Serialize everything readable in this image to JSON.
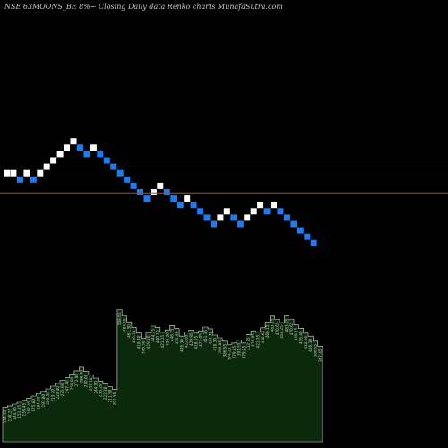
{
  "header": {
    "title": "NSE 63MOONS_BE 8%~  Closing Daily data  Renko  charts MunafaSutra.com"
  },
  "colors": {
    "background": "#000000",
    "up_brick": "#ffffff",
    "down_brick": "#1e7bf0",
    "resistance_line": "#a0522d",
    "volume_fill": "#0b2a0b",
    "volume_stroke": "#dcdcdc",
    "volume_label": "#c8c8c8"
  },
  "chart_data": [
    {
      "type": "renko",
      "bricks": [
        {
          "dir": "up"
        },
        {
          "dir": "up"
        },
        {
          "dir": "down"
        },
        {
          "dir": "up"
        },
        {
          "dir": "down"
        },
        {
          "dir": "up"
        },
        {
          "dir": "up"
        },
        {
          "dir": "up"
        },
        {
          "dir": "up"
        },
        {
          "dir": "up"
        },
        {
          "dir": "up"
        },
        {
          "dir": "down"
        },
        {
          "dir": "down"
        },
        {
          "dir": "up"
        },
        {
          "dir": "down"
        },
        {
          "dir": "down"
        },
        {
          "dir": "down"
        },
        {
          "dir": "down"
        },
        {
          "dir": "down"
        },
        {
          "dir": "down"
        },
        {
          "dir": "down"
        },
        {
          "dir": "down"
        },
        {
          "dir": "up"
        },
        {
          "dir": "up"
        },
        {
          "dir": "down"
        },
        {
          "dir": "down"
        },
        {
          "dir": "down"
        },
        {
          "dir": "up"
        },
        {
          "dir": "down"
        },
        {
          "dir": "down"
        },
        {
          "dir": "down"
        },
        {
          "dir": "down"
        },
        {
          "dir": "up"
        },
        {
          "dir": "up"
        },
        {
          "dir": "down"
        },
        {
          "dir": "down"
        },
        {
          "dir": "up"
        },
        {
          "dir": "up"
        },
        {
          "dir": "up"
        },
        {
          "dir": "down"
        },
        {
          "dir": "up"
        },
        {
          "dir": "down"
        },
        {
          "dir": "down"
        },
        {
          "dir": "down"
        },
        {
          "dir": "down"
        },
        {
          "dir": "down"
        },
        {
          "dir": "down"
        }
      ],
      "brick_levels": [
        8,
        8,
        7,
        8,
        7,
        8,
        9,
        10,
        11,
        12,
        13,
        12,
        11,
        12,
        11,
        10,
        9,
        8,
        7,
        6,
        5,
        4,
        5,
        6,
        5,
        4,
        3,
        4,
        3,
        2,
        1,
        0,
        1,
        2,
        1,
        0,
        1,
        2,
        3,
        2,
        3,
        2,
        1,
        0,
        -1,
        -2,
        -3
      ],
      "resistance_levels": [
        8.8,
        4.9
      ]
    },
    {
      "type": "area",
      "series": [
        {
          "values": [
            132.35,
            138.25,
            144.95,
            151.85,
            159.45,
            167.45,
            175.8,
            184.6,
            193.8,
            203.5,
            213.7,
            224.4,
            235.6,
            247.4,
            259.8,
            272.8,
            286.4,
            270.0,
            257.1,
            244.9,
            233.2,
            222.1,
            211.5,
            201.5,
            508.6,
            484.4,
            461.3,
            439.3,
            418.4,
            398.5,
            419.1,
            444.75,
            440.1,
            421.15,
            430.2,
            446.75,
            435.65,
            406.3,
            422.85,
            429.95,
            418.05,
            427.05,
            441.35,
            434.75,
            410.3,
            399.85,
            386.95,
            374.25,
            379.85,
            391.55,
            379.85,
            412.75,
            426.95,
            421.35,
            438.65,
            460.15,
            483.55,
            470.65,
            458.25,
            483.95,
            470.65,
            449.15,
            436.4,
            418.0,
            406.3,
            386.95,
            367.45
          ]
        }
      ],
      "labels": [
        "132.35",
        "138.25",
        "144.95",
        "151.85",
        "159.45",
        "167.45",
        "175.80",
        "184.60",
        "193.80",
        "203.50",
        "213.70",
        "224.40",
        "235.60",
        "247.40",
        "259.80",
        "272.80",
        "286.40",
        "270.00",
        "257.10",
        "244.90",
        "233.20",
        "222.10",
        "211.50",
        "201.50",
        "508.60",
        "484.40",
        "461.30",
        "439.30",
        "418.40",
        "398.50",
        "419.10",
        "444.75",
        "440.10",
        "421.15",
        "430.20",
        "446.75",
        "435.65",
        "406.30",
        "422.85",
        "429.95",
        "418.05",
        "427.05",
        "441.35",
        "434.75",
        "410.30",
        "399.85",
        "386.95",
        "374.25",
        "379.85",
        "391.55",
        "379.85",
        "412.75",
        "426.95",
        "421.35",
        "438.65",
        "460.15",
        "483.55",
        "470.65",
        "458.25",
        "483.95",
        "470.65",
        "449.15",
        "436.40",
        "418.00",
        "406.30",
        "386.95",
        "367.45"
      ],
      "ylim": [
        0,
        600
      ]
    }
  ]
}
